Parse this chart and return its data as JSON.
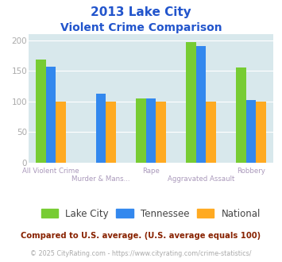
{
  "title_line1": "2013 Lake City",
  "title_line2": "Violent Crime Comparison",
  "categories": [
    "All Violent Crime",
    "Murder & Mans...",
    "Rape",
    "Aggravated Assault",
    "Robbery"
  ],
  "series": {
    "Lake City": [
      168,
      0,
      105,
      197,
      155
    ],
    "Tennessee": [
      157,
      113,
      105,
      191,
      102
    ],
    "National": [
      100,
      100,
      100,
      100,
      100
    ]
  },
  "colors": {
    "Lake City": "#77cc33",
    "Tennessee": "#3388ee",
    "National": "#ffaa22"
  },
  "ylim": [
    0,
    210
  ],
  "yticks": [
    0,
    50,
    100,
    150,
    200
  ],
  "legend_labels": [
    "Lake City",
    "Tennessee",
    "National"
  ],
  "footnote1": "Compared to U.S. average. (U.S. average equals 100)",
  "footnote2": "© 2025 CityRating.com - https://www.cityrating.com/crime-statistics/",
  "bg_color": "#d8e8ec",
  "title_color": "#2255cc",
  "footnote1_color": "#882200",
  "footnote2_color": "#aaaaaa",
  "xlabel_color": "#aa99bb",
  "ytick_color": "#aaaaaa",
  "bar_width": 0.2
}
